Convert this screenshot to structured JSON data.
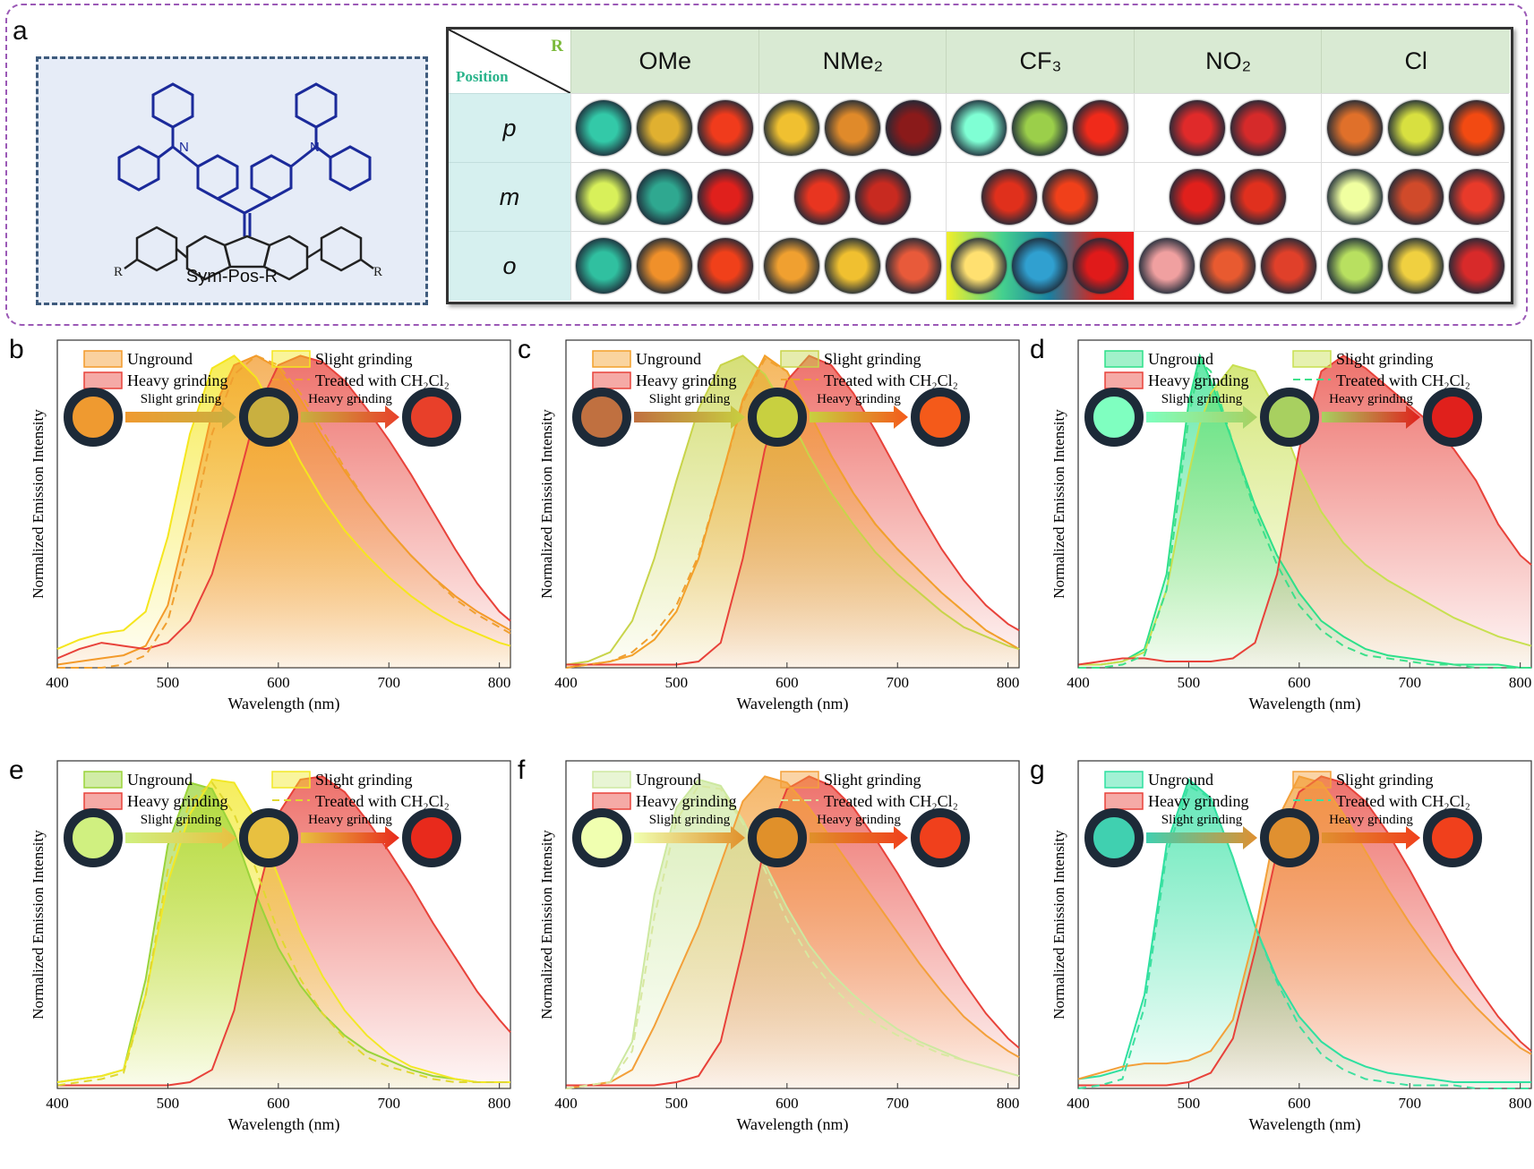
{
  "panel_a": {
    "label": "a",
    "structure_label": "Sym-Pos-R",
    "substituent_label": "R",
    "table": {
      "corner_r": "R",
      "corner_position": "Position",
      "columns": [
        "OMe",
        "NMe₂",
        "CF₃",
        "NO₂",
        "Cl"
      ],
      "rows": [
        "p",
        "m",
        "o"
      ],
      "images": [
        [
          [
            "#33c9a8",
            "#e0b030",
            "#f03b1c"
          ],
          [
            "#f0c030",
            "#e08a2a",
            "#8a1a1a"
          ],
          [
            "#7fffd4",
            "#9bcf4a",
            "#f02a1a"
          ],
          [
            "#e02a2a",
            "#d62a2a"
          ],
          [
            "#e0702a",
            "#d8e040",
            "#f24a12"
          ]
        ],
        [
          [
            "#d8f05a",
            "#2fa890",
            "#e0201c"
          ],
          [
            "#e83520",
            "#c82a20"
          ],
          [
            "#e0301c",
            "#f0401a"
          ],
          [
            "#e0201c",
            "#e0301e"
          ],
          [
            "#f0ffa0",
            "#d04a2a",
            "#e83a2a"
          ]
        ],
        [
          [
            "#30c0a0",
            "#f0902a",
            "#f0401a"
          ],
          [
            "#f0a030",
            "#f0c030",
            "#e85a3a"
          ],
          [
            "#ffe070",
            "#30a0d0",
            "#e01a1a"
          ],
          [
            "#f0a0a0",
            "#e85a30",
            "#e0402a"
          ],
          [
            "#b8e060",
            "#f0d040",
            "#d82a2a"
          ]
        ]
      ]
    }
  },
  "common": {
    "ylabel": "Normalized Emission Intensity",
    "xlabel": "Wavelength (nm)",
    "xticks": [
      "400",
      "500",
      "600",
      "700",
      "800"
    ],
    "legend": [
      "Unground",
      "Slight grinding",
      "Heavy grinding",
      "Treated with CH₂Cl₂"
    ],
    "arrow1": "Slight grinding",
    "arrow2": "Heavy grinding"
  },
  "chart_data": [
    {
      "panel": "b",
      "type": "area",
      "xlim": [
        400,
        810
      ],
      "ylim": [
        0,
        1.05
      ],
      "x": [
        400,
        420,
        440,
        460,
        480,
        500,
        520,
        540,
        560,
        580,
        600,
        620,
        640,
        660,
        680,
        700,
        720,
        740,
        760,
        780,
        800,
        810
      ],
      "colors": {
        "unground": "#f39a2a",
        "slight": "#f5e61e",
        "heavy": "#e8423a",
        "treated": "#f0a030"
      },
      "photos": [
        "#ef9a30",
        "#c9b040",
        "#e8402a"
      ],
      "series": [
        {
          "name": "Unground",
          "values": [
            0.01,
            0.02,
            0.03,
            0.04,
            0.07,
            0.2,
            0.5,
            0.82,
            0.97,
            1.0,
            0.96,
            0.86,
            0.74,
            0.63,
            0.53,
            0.44,
            0.36,
            0.29,
            0.23,
            0.18,
            0.14,
            0.12
          ]
        },
        {
          "name": "Slight grinding",
          "values": [
            0.06,
            0.09,
            0.11,
            0.12,
            0.18,
            0.42,
            0.75,
            0.96,
            1.0,
            0.93,
            0.8,
            0.66,
            0.54,
            0.44,
            0.36,
            0.29,
            0.23,
            0.18,
            0.14,
            0.11,
            0.08,
            0.07
          ]
        },
        {
          "name": "Heavy grinding",
          "values": [
            0.03,
            0.06,
            0.08,
            0.07,
            0.06,
            0.08,
            0.15,
            0.3,
            0.55,
            0.82,
            0.97,
            1.0,
            0.98,
            0.92,
            0.83,
            0.73,
            0.62,
            0.5,
            0.38,
            0.27,
            0.18,
            0.15
          ]
        },
        {
          "name": "Treated with CH₂Cl₂",
          "values": [
            0.0,
            0.0,
            0.0,
            0.01,
            0.04,
            0.15,
            0.42,
            0.75,
            0.94,
            1.0,
            0.97,
            0.88,
            0.76,
            0.64,
            0.53,
            0.44,
            0.36,
            0.29,
            0.22,
            0.17,
            0.13,
            0.11
          ]
        }
      ]
    },
    {
      "panel": "c",
      "type": "area",
      "xlim": [
        400,
        810
      ],
      "ylim": [
        0,
        1.05
      ],
      "x": [
        400,
        420,
        440,
        460,
        480,
        500,
        520,
        540,
        560,
        580,
        600,
        620,
        640,
        660,
        680,
        700,
        720,
        740,
        760,
        780,
        800,
        810
      ],
      "colors": {
        "unground": "#f3a02a",
        "slight": "#c8d44a",
        "heavy": "#e8423a",
        "treated": "#f0a030"
      },
      "photos": [
        "#c07040",
        "#c8d040",
        "#f45a1a"
      ],
      "series": [
        {
          "name": "Unground",
          "values": [
            0.0,
            0.01,
            0.02,
            0.04,
            0.09,
            0.18,
            0.35,
            0.6,
            0.86,
            1.0,
            0.95,
            0.82,
            0.68,
            0.56,
            0.46,
            0.38,
            0.31,
            0.24,
            0.18,
            0.12,
            0.08,
            0.06
          ]
        },
        {
          "name": "Slight grinding",
          "values": [
            0.01,
            0.02,
            0.05,
            0.15,
            0.35,
            0.6,
            0.83,
            0.97,
            1.0,
            0.94,
            0.82,
            0.68,
            0.56,
            0.46,
            0.37,
            0.3,
            0.24,
            0.18,
            0.13,
            0.1,
            0.07,
            0.06
          ]
        },
        {
          "name": "Heavy grinding",
          "values": [
            0.01,
            0.01,
            0.01,
            0.01,
            0.01,
            0.01,
            0.02,
            0.08,
            0.35,
            0.7,
            0.92,
            1.0,
            0.97,
            0.88,
            0.76,
            0.63,
            0.5,
            0.38,
            0.28,
            0.2,
            0.14,
            0.12
          ]
        },
        {
          "name": "Treated with CH₂Cl₂",
          "values": [
            0.0,
            0.01,
            0.02,
            0.05,
            0.11,
            0.2,
            0.36,
            0.6,
            0.85,
            0.99,
            0.95,
            0.82,
            0.68,
            0.56,
            0.46,
            0.38,
            0.31,
            0.24,
            0.18,
            0.12,
            0.08,
            0.06
          ]
        }
      ]
    },
    {
      "panel": "d",
      "type": "area",
      "xlim": [
        400,
        810
      ],
      "ylim": [
        0,
        1.05
      ],
      "x": [
        400,
        420,
        440,
        460,
        480,
        500,
        510,
        520,
        540,
        560,
        580,
        600,
        620,
        640,
        660,
        680,
        700,
        720,
        740,
        760,
        780,
        800,
        810
      ],
      "colors": {
        "unground": "#2ee08a",
        "slight": "#c8e050",
        "heavy": "#e8423a",
        "treated": "#3de08a"
      },
      "photos": [
        "#7fffc0",
        "#a8d060",
        "#e0201c"
      ],
      "series": [
        {
          "name": "Unground",
          "values": [
            0.01,
            0.01,
            0.02,
            0.06,
            0.3,
            0.85,
            1.0,
            0.92,
            0.72,
            0.52,
            0.36,
            0.24,
            0.15,
            0.1,
            0.06,
            0.04,
            0.03,
            0.02,
            0.01,
            0.01,
            0.01,
            0.0,
            0.0
          ]
        },
        {
          "name": "Slight grinding",
          "values": [
            0.01,
            0.01,
            0.02,
            0.05,
            0.25,
            0.62,
            0.78,
            0.88,
            0.97,
            0.95,
            0.82,
            0.64,
            0.5,
            0.4,
            0.33,
            0.28,
            0.24,
            0.2,
            0.16,
            0.13,
            0.1,
            0.08,
            0.07
          ]
        },
        {
          "name": "Heavy grinding",
          "values": [
            0.01,
            0.02,
            0.03,
            0.03,
            0.02,
            0.02,
            0.02,
            0.02,
            0.03,
            0.08,
            0.3,
            0.7,
            0.95,
            1.0,
            0.96,
            0.9,
            0.84,
            0.78,
            0.7,
            0.6,
            0.46,
            0.36,
            0.33
          ]
        },
        {
          "name": "Treated with CH₂Cl₂",
          "values": [
            0.0,
            0.0,
            0.01,
            0.04,
            0.25,
            0.8,
            0.98,
            0.95,
            0.72,
            0.5,
            0.33,
            0.2,
            0.12,
            0.07,
            0.04,
            0.03,
            0.02,
            0.01,
            0.01,
            0.0,
            0.0,
            0.0,
            0.0
          ]
        }
      ]
    },
    {
      "panel": "e",
      "type": "area",
      "xlim": [
        400,
        810
      ],
      "ylim": [
        0,
        1.05
      ],
      "x": [
        400,
        420,
        440,
        460,
        480,
        500,
        520,
        540,
        560,
        580,
        600,
        620,
        640,
        660,
        680,
        700,
        720,
        740,
        760,
        780,
        800,
        810
      ],
      "colors": {
        "unground": "#9ad43a",
        "slight": "#f2e826",
        "heavy": "#e8423a",
        "treated": "#e0d830"
      },
      "photos": [
        "#d0f080",
        "#e8c040",
        "#e82a1c"
      ],
      "series": [
        {
          "name": "Unground",
          "values": [
            0.02,
            0.03,
            0.04,
            0.06,
            0.35,
            0.78,
            0.98,
            0.96,
            0.82,
            0.62,
            0.45,
            0.33,
            0.24,
            0.17,
            0.12,
            0.09,
            0.06,
            0.04,
            0.03,
            0.02,
            0.02,
            0.02
          ]
        },
        {
          "name": "Slight grinding",
          "values": [
            0.02,
            0.03,
            0.04,
            0.06,
            0.3,
            0.66,
            0.88,
            0.99,
            0.98,
            0.86,
            0.68,
            0.5,
            0.36,
            0.25,
            0.17,
            0.11,
            0.07,
            0.05,
            0.03,
            0.02,
            0.02,
            0.02
          ]
        },
        {
          "name": "Heavy grinding",
          "values": [
            0.01,
            0.01,
            0.01,
            0.01,
            0.01,
            0.01,
            0.02,
            0.06,
            0.25,
            0.6,
            0.88,
            0.99,
            1.0,
            0.95,
            0.86,
            0.76,
            0.65,
            0.53,
            0.42,
            0.31,
            0.22,
            0.18
          ]
        },
        {
          "name": "Treated with CH₂Cl₂",
          "values": [
            0.01,
            0.02,
            0.03,
            0.05,
            0.3,
            0.7,
            0.92,
            0.98,
            0.88,
            0.7,
            0.5,
            0.35,
            0.24,
            0.16,
            0.1,
            0.07,
            0.05,
            0.03,
            0.02,
            0.02,
            0.02,
            0.02
          ]
        }
      ]
    },
    {
      "panel": "f",
      "type": "area",
      "xlim": [
        400,
        810
      ],
      "ylim": [
        0,
        1.05
      ],
      "x": [
        400,
        420,
        440,
        460,
        480,
        500,
        520,
        540,
        560,
        580,
        600,
        620,
        640,
        660,
        680,
        700,
        720,
        740,
        760,
        780,
        800,
        810
      ],
      "colors": {
        "unground": "#cde8a0",
        "slight": "#f3a03a",
        "heavy": "#e8423a",
        "treated": "#d8e8a0"
      },
      "photos": [
        "#f0ffb0",
        "#e0902a",
        "#f0401c"
      ],
      "series": [
        {
          "name": "Unground",
          "values": [
            0.0,
            0.01,
            0.02,
            0.15,
            0.62,
            0.9,
            0.99,
            0.97,
            0.86,
            0.72,
            0.58,
            0.46,
            0.37,
            0.3,
            0.24,
            0.19,
            0.15,
            0.12,
            0.09,
            0.07,
            0.05,
            0.04
          ]
        },
        {
          "name": "Slight grinding",
          "values": [
            0.0,
            0.01,
            0.02,
            0.06,
            0.2,
            0.36,
            0.52,
            0.72,
            0.92,
            1.0,
            0.98,
            0.9,
            0.8,
            0.7,
            0.6,
            0.5,
            0.4,
            0.31,
            0.23,
            0.17,
            0.12,
            0.1
          ]
        },
        {
          "name": "Heavy grinding",
          "values": [
            0.01,
            0.01,
            0.01,
            0.01,
            0.01,
            0.02,
            0.04,
            0.15,
            0.45,
            0.78,
            0.96,
            1.0,
            0.97,
            0.9,
            0.8,
            0.69,
            0.57,
            0.45,
            0.34,
            0.24,
            0.16,
            0.13
          ]
        },
        {
          "name": "Treated with CH₂Cl₂",
          "values": [
            0.0,
            0.01,
            0.02,
            0.12,
            0.55,
            0.86,
            0.97,
            0.96,
            0.85,
            0.7,
            0.54,
            0.42,
            0.33,
            0.26,
            0.21,
            0.17,
            0.14,
            0.11,
            0.09,
            0.07,
            0.05,
            0.04
          ]
        }
      ]
    },
    {
      "panel": "g",
      "type": "area",
      "xlim": [
        400,
        810
      ],
      "ylim": [
        0,
        1.05
      ],
      "x": [
        400,
        420,
        440,
        460,
        480,
        500,
        520,
        540,
        560,
        580,
        600,
        620,
        640,
        660,
        680,
        700,
        720,
        740,
        760,
        780,
        800,
        810
      ],
      "colors": {
        "unground": "#2ee0a0",
        "slight": "#f3a03a",
        "heavy": "#e8423a",
        "treated": "#3de0a0"
      },
      "photos": [
        "#40d0b0",
        "#e09030",
        "#f0401c"
      ],
      "series": [
        {
          "name": "Unground",
          "values": [
            0.03,
            0.04,
            0.06,
            0.3,
            0.78,
            0.99,
            0.93,
            0.74,
            0.52,
            0.35,
            0.23,
            0.15,
            0.1,
            0.07,
            0.05,
            0.04,
            0.03,
            0.02,
            0.02,
            0.02,
            0.02,
            0.02
          ]
        },
        {
          "name": "Slight grinding",
          "values": [
            0.03,
            0.05,
            0.07,
            0.08,
            0.08,
            0.09,
            0.12,
            0.22,
            0.5,
            0.86,
            1.0,
            0.98,
            0.88,
            0.76,
            0.64,
            0.53,
            0.43,
            0.34,
            0.26,
            0.19,
            0.13,
            0.11
          ]
        },
        {
          "name": "Heavy grinding",
          "values": [
            0.01,
            0.01,
            0.01,
            0.01,
            0.01,
            0.02,
            0.05,
            0.16,
            0.44,
            0.76,
            0.95,
            1.0,
            0.98,
            0.92,
            0.82,
            0.7,
            0.57,
            0.44,
            0.33,
            0.23,
            0.15,
            0.12
          ]
        },
        {
          "name": "Treated with CH₂Cl₂",
          "values": [
            0.0,
            0.01,
            0.03,
            0.26,
            0.75,
            0.97,
            0.93,
            0.74,
            0.52,
            0.34,
            0.2,
            0.11,
            0.06,
            0.03,
            0.02,
            0.01,
            0.01,
            0.01,
            0.0,
            0.0,
            0.0,
            0.0
          ]
        }
      ]
    }
  ]
}
